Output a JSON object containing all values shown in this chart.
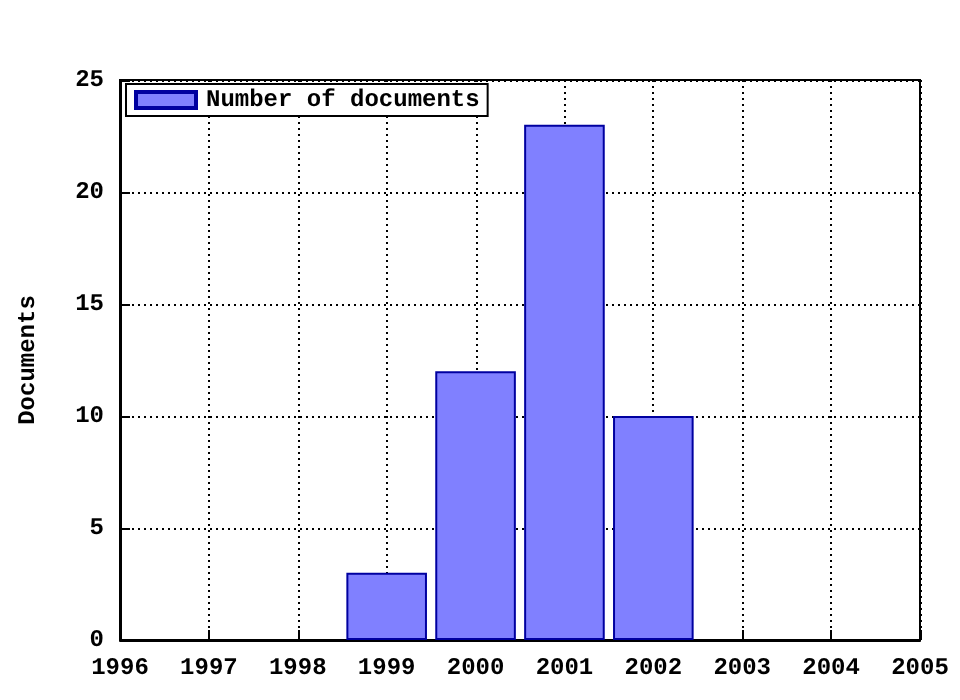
{
  "chart_data": {
    "type": "bar",
    "ylabel": "Documents",
    "x": [
      1999,
      2000,
      2001,
      2002
    ],
    "series": [
      {
        "name": "Number of documents",
        "color": "#8080ff",
        "values": [
          3,
          12,
          23,
          10
        ]
      }
    ],
    "xlim": [
      1996,
      2005
    ],
    "xticks": [
      1996,
      1997,
      1998,
      1999,
      2000,
      2001,
      2002,
      2003,
      2004,
      2005
    ],
    "ylim": [
      0,
      25
    ],
    "yticks": [
      0,
      5,
      10,
      15,
      20,
      25
    ],
    "grid": true,
    "legend": "top left"
  }
}
